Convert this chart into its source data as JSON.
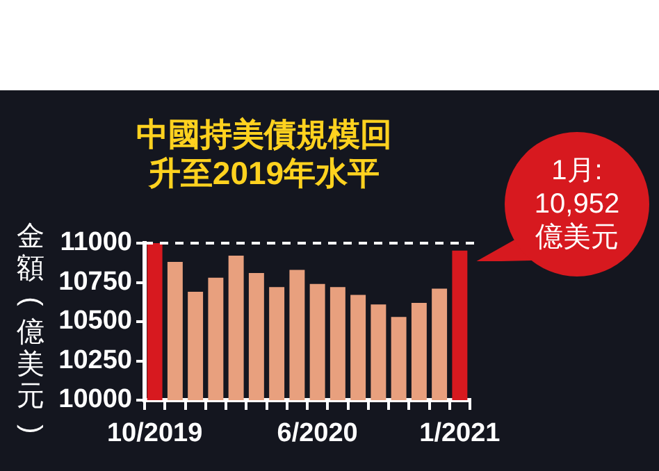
{
  "chart_data": {
    "type": "bar",
    "title": "中國持美債規模回升至2019年水平",
    "ylabel": "金額(億美元)",
    "categories": [
      "10/2019",
      null,
      null,
      null,
      null,
      null,
      null,
      null,
      "6/2020",
      null,
      null,
      null,
      null,
      null,
      null,
      "1/2021"
    ],
    "values": [
      11000,
      10880,
      10690,
      10780,
      10920,
      10810,
      10720,
      10830,
      10740,
      10720,
      10670,
      10610,
      10530,
      10620,
      10710,
      10952
    ],
    "colors": [
      "#d7191f",
      "#e8a07e",
      "#e8a07e",
      "#e8a07e",
      "#e8a07e",
      "#e8a07e",
      "#e8a07e",
      "#e8a07e",
      "#e8a07e",
      "#e8a07e",
      "#e8a07e",
      "#e8a07e",
      "#e8a07e",
      "#e8a07e",
      "#e8a07e",
      "#d7191f"
    ],
    "ylim": [
      10000,
      11000
    ],
    "yticks": [
      10000,
      10250,
      10500,
      10750,
      11000
    ],
    "grid": false,
    "legend": false,
    "ref_lines": [
      {
        "axis": "y",
        "value": 11000,
        "color": "#ffffff",
        "line_style": "dashed"
      }
    ],
    "annotations": [
      {
        "text": "1月:\n10,952\n億美元",
        "x": "1/2021",
        "y": 10952
      }
    ]
  }
}
